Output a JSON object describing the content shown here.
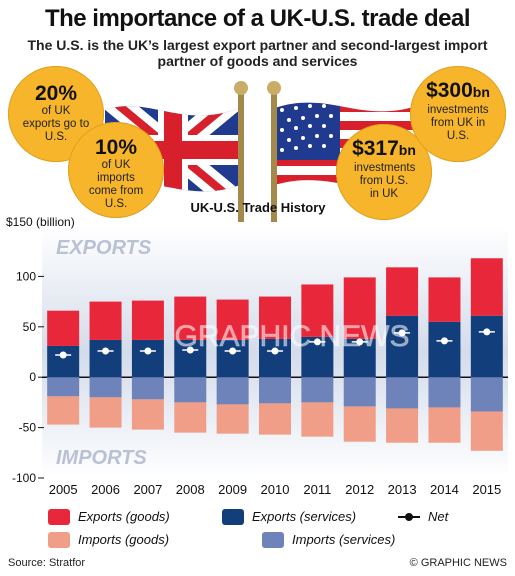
{
  "title": "The importance of a UK-U.S. trade deal",
  "subtitle": "The U.S. is the UK’s largest export partner and second-largest import partner of goods and services",
  "callouts": [
    {
      "big": "20%",
      "text": "of UK exports go to U.S."
    },
    {
      "big": "10%",
      "text": "of UK imports come from U.S."
    },
    {
      "big": "$317",
      "unit": "bn",
      "text": "investments from U.S. in UK"
    },
    {
      "big": "$300",
      "unit": "bn",
      "text": "investments from UK in U.S."
    }
  ],
  "chart_data": {
    "type": "bar",
    "title": "UK-U.S. Trade History",
    "ylabel": "$150 (billion)",
    "ylim": [
      -100,
      150
    ],
    "yticks": [
      "100",
      "50",
      "0",
      "-50",
      "-100"
    ],
    "region_labels": {
      "top": "EXPORTS",
      "bottom": "IMPORTS"
    },
    "categories": [
      "2005",
      "2006",
      "2007",
      "2008",
      "2009",
      "2010",
      "2011",
      "2012",
      "2013",
      "2014",
      "2015"
    ],
    "series": [
      {
        "name": "Exports (goods)",
        "color": "#e8283a",
        "values": [
          35,
          38,
          39,
          43,
          40,
          42,
          52,
          61,
          48,
          44,
          57
        ]
      },
      {
        "name": "Exports (services)",
        "color": "#123e7c",
        "values": [
          31,
          37,
          37,
          37,
          37,
          38,
          40,
          38,
          61,
          55,
          61
        ]
      },
      {
        "name": "Imports (goods)",
        "color": "#f19e88",
        "values": [
          -28,
          -30,
          -30,
          -30,
          -29,
          -31,
          -34,
          -35,
          -34,
          -35,
          -39
        ]
      },
      {
        "name": "Imports (services)",
        "color": "#6f83bb",
        "values": [
          -19,
          -20,
          -22,
          -25,
          -27,
          -26,
          -25,
          -29,
          -31,
          -30,
          -34
        ]
      },
      {
        "name": "Net",
        "color": "#111111",
        "values": [
          22,
          26,
          26,
          27,
          26,
          26,
          35,
          35,
          44,
          36,
          45
        ]
      }
    ],
    "grid": false,
    "legend": "bottom"
  },
  "watermark": "GRAPHIC NEWS",
  "source": "Source: Stratfor",
  "credit": "© GRAPHIC NEWS"
}
